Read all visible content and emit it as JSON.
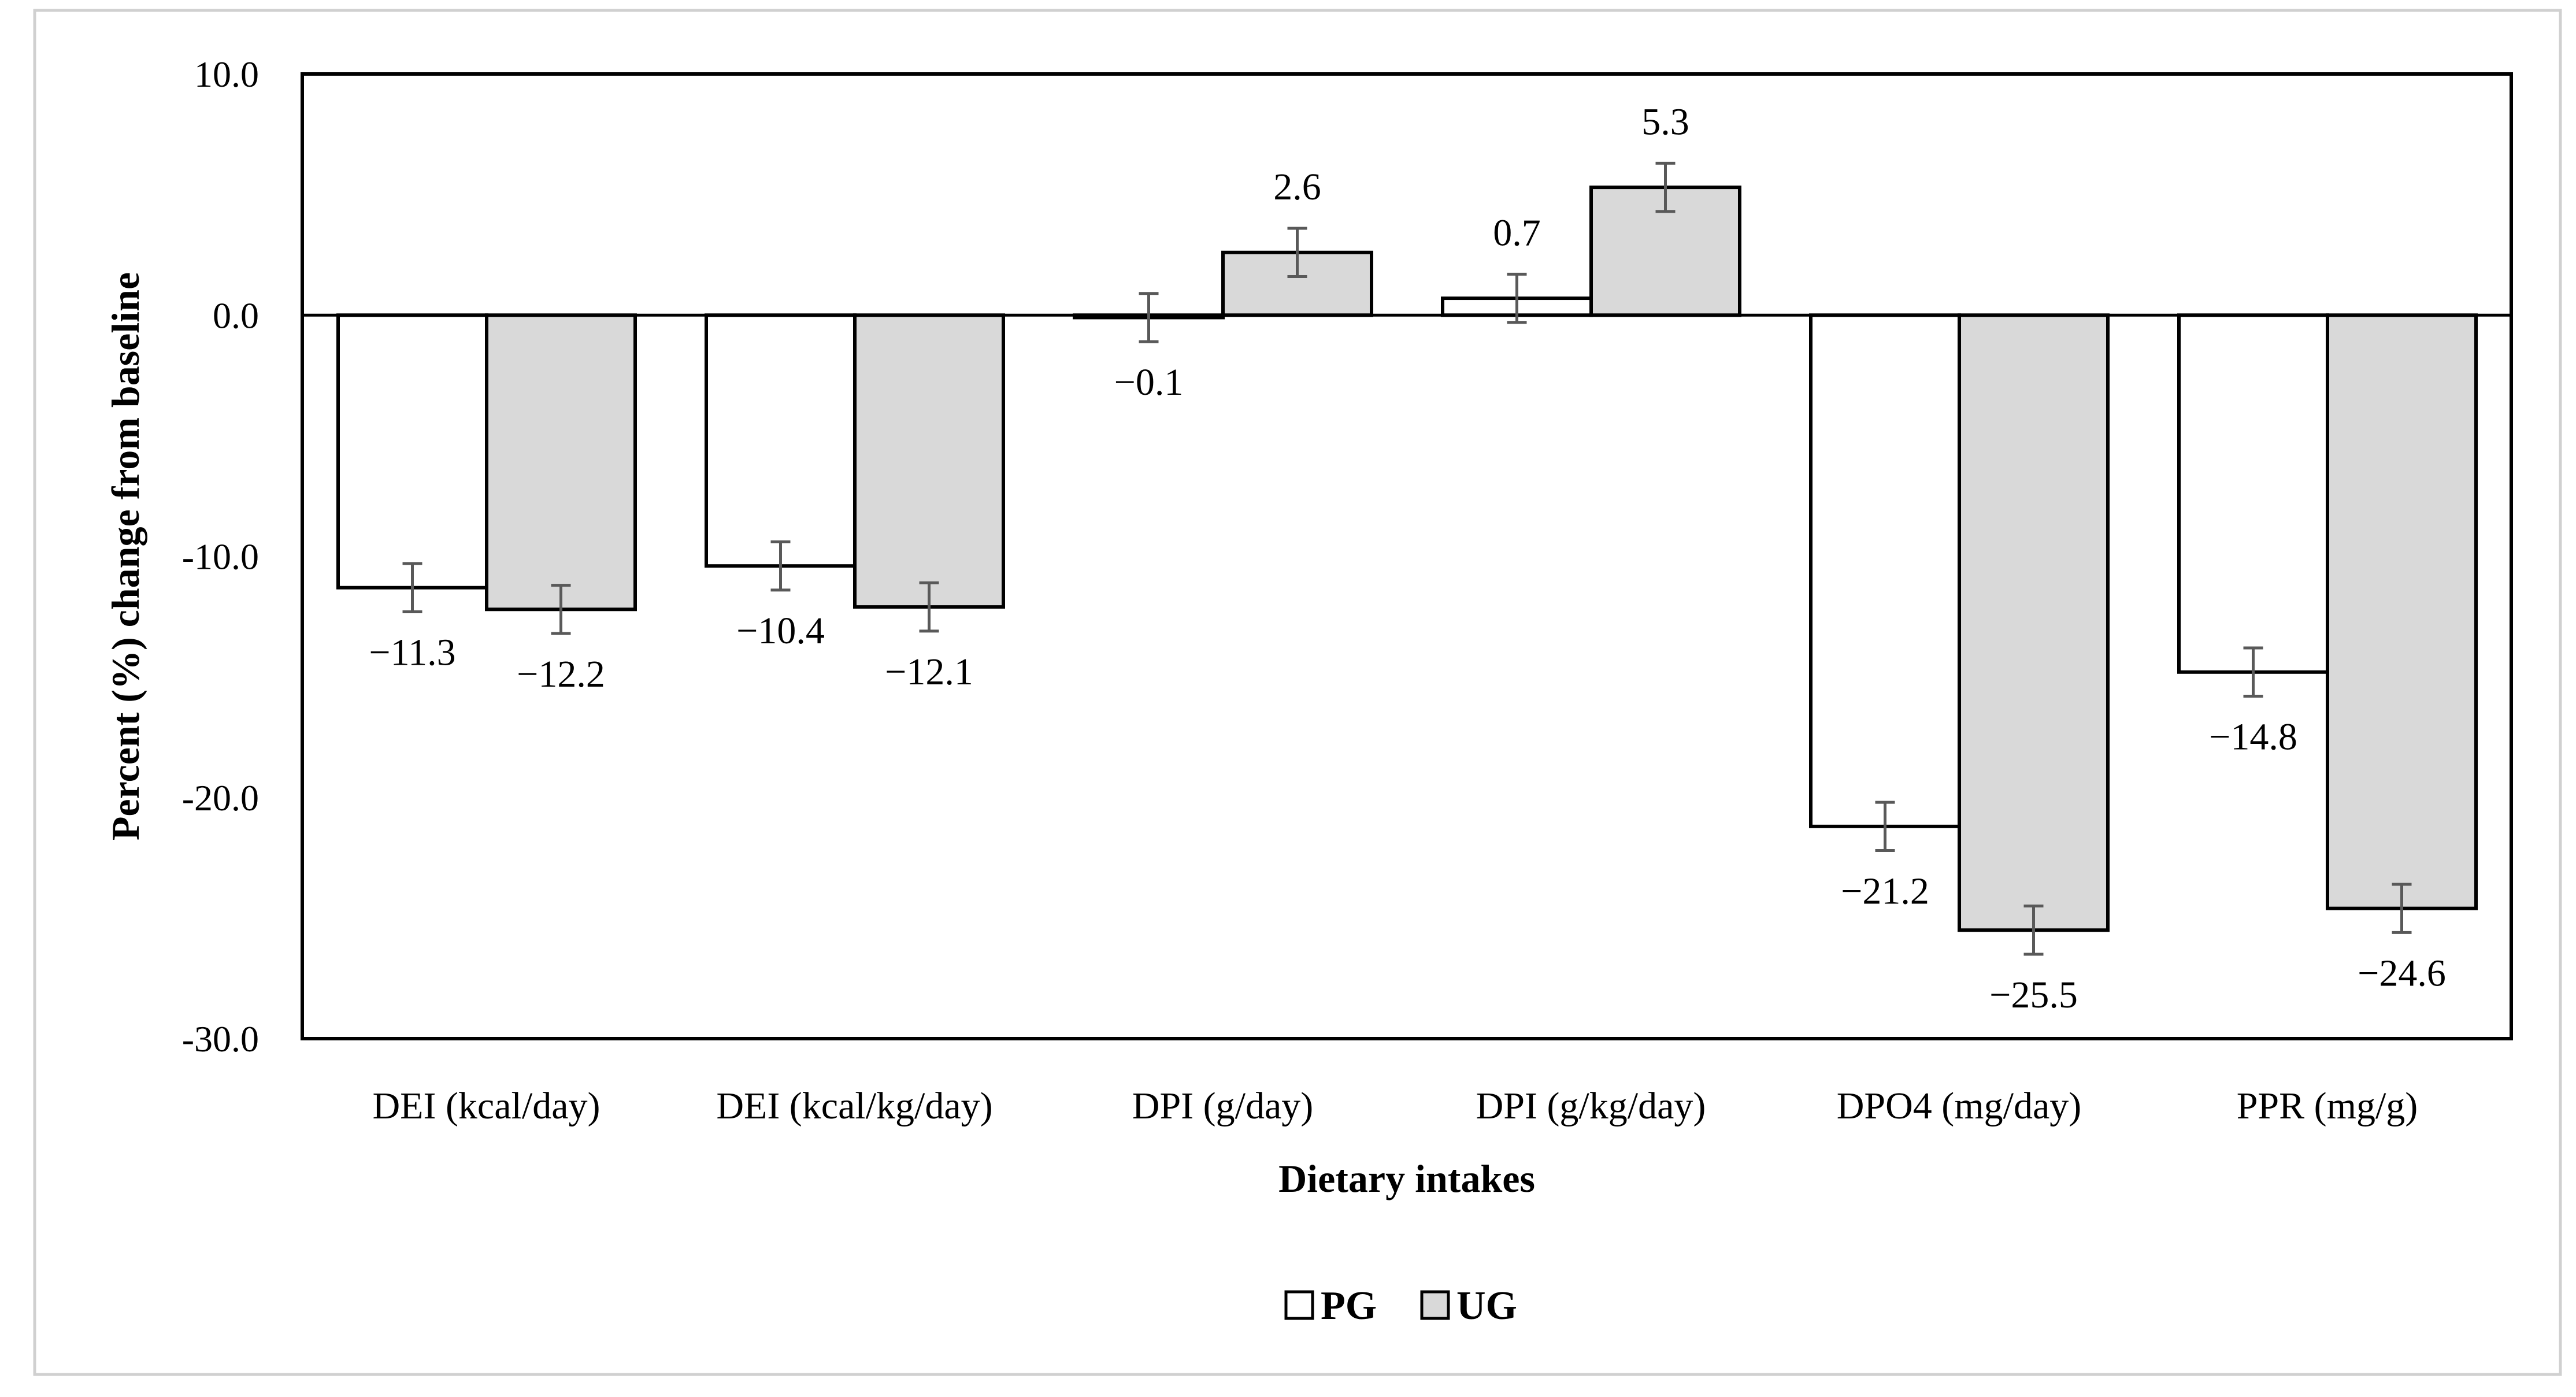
{
  "chart_data": {
    "type": "bar",
    "xlabel": "Dietary intakes",
    "ylabel": "Percent (%) change from baseline",
    "ylim": [
      -30,
      10
    ],
    "yticks": [
      "10.0",
      "0.0",
      "-10.0",
      "-20.0",
      "-30.0"
    ],
    "grid": false,
    "legend_position": "bottom-center",
    "categories": [
      "DEI (kcal/day)",
      "DEI (kcal/kg/day)",
      "DPI (g/day)",
      "DPI (g/kg/day)",
      "DPO4 (mg/day)",
      "PPR (mg/g)"
    ],
    "series": [
      {
        "name": "PG",
        "color": "#ffffff",
        "values": [
          -11.3,
          -10.4,
          -0.1,
          0.7,
          -21.2,
          -14.8
        ],
        "labels": [
          "−11.3",
          "−10.4",
          "−0.1",
          "0.7",
          "−21.2",
          "−14.8"
        ],
        "error": [
          1.0,
          1.0,
          1.0,
          1.0,
          1.0,
          1.0
        ]
      },
      {
        "name": "UG",
        "color": "#d9d9d9",
        "values": [
          -12.2,
          -12.1,
          2.6,
          5.3,
          -25.5,
          -24.6
        ],
        "labels": [
          "−12.2",
          "−12.1",
          "2.6",
          "5.3",
          "−25.5",
          "−24.6"
        ],
        "error": [
          1.0,
          1.0,
          1.0,
          1.0,
          1.0,
          1.0
        ]
      }
    ]
  }
}
